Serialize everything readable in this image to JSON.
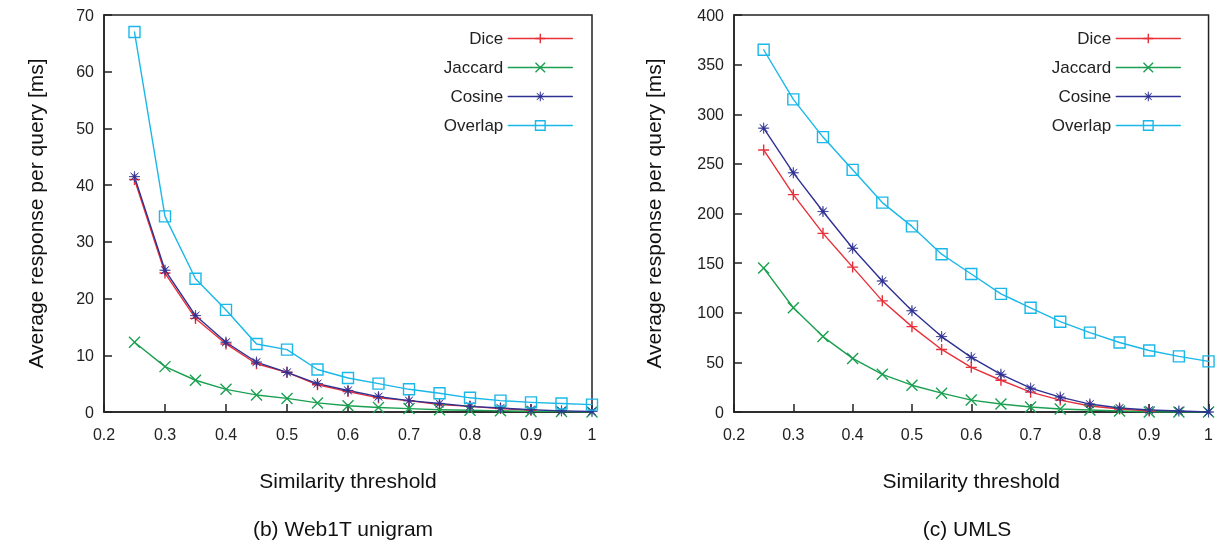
{
  "chart_data": [
    {
      "type": "line",
      "title": "(b) Web1T unigram",
      "xlabel": "Similarity threshold",
      "ylabel": "Average response per query [ms]",
      "x": [
        0.25,
        0.3,
        0.35,
        0.4,
        0.45,
        0.5,
        0.55,
        0.6,
        0.65,
        0.7,
        0.75,
        0.8,
        0.85,
        0.9,
        0.95,
        1
      ],
      "xlim": [
        0.2,
        1
      ],
      "xticks": [
        0.2,
        0.3,
        0.4,
        0.5,
        0.6,
        0.7,
        0.8,
        0.9,
        1
      ],
      "ylim": [
        0,
        70
      ],
      "yticks": [
        0,
        10,
        20,
        30,
        40,
        50,
        60,
        70
      ],
      "grid": false,
      "legend": "top right",
      "line_style": "solid",
      "series": [
        {
          "name": "Dice",
          "color": "#e8303a",
          "marker": "plus",
          "values": [
            41,
            24.5,
            16.5,
            12,
            8.5,
            7,
            4.8,
            3.6,
            2.5,
            2,
            1.3,
            1,
            0.6,
            0.3,
            null,
            null
          ]
        },
        {
          "name": "Jaccard",
          "color": "#1aa050",
          "marker": "cross",
          "values": [
            12.3,
            8,
            5.6,
            4,
            3,
            2.4,
            1.6,
            1.1,
            0.8,
            0.6,
            0.4,
            0.3,
            0.2,
            0.1,
            0.1,
            0
          ]
        },
        {
          "name": "Cosine",
          "color": "#2e3192",
          "marker": "star",
          "values": [
            41.5,
            25,
            17,
            12.3,
            8.8,
            7,
            5,
            3.8,
            2.7,
            2,
            1.5,
            1,
            0.7,
            0.4,
            0.2,
            0.1
          ]
        },
        {
          "name": "Overlap",
          "color": "#1ab8e8",
          "marker": "square",
          "values": [
            67,
            34.5,
            23.5,
            18,
            12,
            11,
            7.5,
            6,
            5,
            4,
            3.3,
            2.5,
            2,
            1.7,
            1.5,
            1.3
          ]
        }
      ]
    },
    {
      "type": "line",
      "title": "(c) UMLS",
      "xlabel": "Similarity threshold",
      "ylabel": "Average response per query [ms]",
      "x": [
        0.25,
        0.3,
        0.35,
        0.4,
        0.45,
        0.5,
        0.55,
        0.6,
        0.65,
        0.7,
        0.75,
        0.8,
        0.85,
        0.9,
        0.95,
        1
      ],
      "xlim": [
        0.2,
        1
      ],
      "xticks": [
        0.2,
        0.3,
        0.4,
        0.5,
        0.6,
        0.7,
        0.8,
        0.9,
        1
      ],
      "ylim": [
        0,
        400
      ],
      "yticks": [
        0,
        50,
        100,
        150,
        200,
        250,
        300,
        350,
        400
      ],
      "grid": false,
      "legend": "top right",
      "line_style": "solid",
      "series": [
        {
          "name": "Dice",
          "color": "#e8303a",
          "marker": "plus",
          "values": [
            264,
            219,
            180,
            146,
            112,
            86,
            63,
            45,
            32,
            20,
            12,
            6,
            3,
            1,
            null,
            null
          ]
        },
        {
          "name": "Jaccard",
          "color": "#1aa050",
          "marker": "cross",
          "values": [
            145,
            105,
            76,
            54,
            38,
            27,
            19,
            12,
            8,
            5,
            3,
            2,
            1,
            0,
            0,
            0
          ]
        },
        {
          "name": "Cosine",
          "color": "#2e3192",
          "marker": "star",
          "values": [
            286,
            241,
            202,
            165,
            132,
            102,
            76,
            55,
            38,
            24,
            15,
            8,
            4,
            2,
            1,
            0
          ]
        },
        {
          "name": "Overlap",
          "color": "#1ab8e8",
          "marker": "square",
          "values": [
            365,
            315,
            277,
            244,
            211,
            187,
            159,
            139,
            119,
            105,
            91,
            80,
            70,
            62,
            56,
            51
          ]
        }
      ]
    }
  ]
}
